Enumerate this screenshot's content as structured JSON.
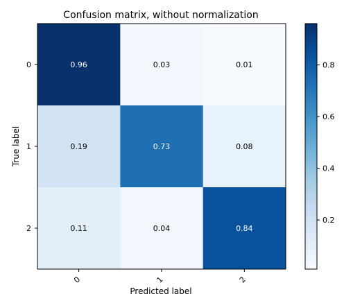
{
  "chart_data": {
    "type": "heatmap",
    "title": "Confusion matrix, without normalization",
    "xlabel": "Predicted label",
    "ylabel": "True label",
    "x_categories": [
      "0",
      "1",
      "2"
    ],
    "y_categories": [
      "0",
      "1",
      "2"
    ],
    "values": [
      [
        0.96,
        0.03,
        0.01
      ],
      [
        0.19,
        0.73,
        0.08
      ],
      [
        0.11,
        0.04,
        0.84
      ]
    ],
    "cell_labels": [
      [
        "0.96",
        "0.03",
        "0.01"
      ],
      [
        "0.19",
        "0.73",
        "0.08"
      ],
      [
        "0.11",
        "0.04",
        "0.84"
      ]
    ],
    "colormap": "Blues",
    "colorbar": {
      "range": [
        0.01,
        0.96
      ],
      "ticks": [
        0.2,
        0.4,
        0.6,
        0.8
      ],
      "tick_labels": [
        "0.2",
        "0.4",
        "0.6",
        "0.8"
      ]
    },
    "text_colors": {
      "light_cells": "#000000",
      "dark_cells": "#ffffff"
    }
  }
}
